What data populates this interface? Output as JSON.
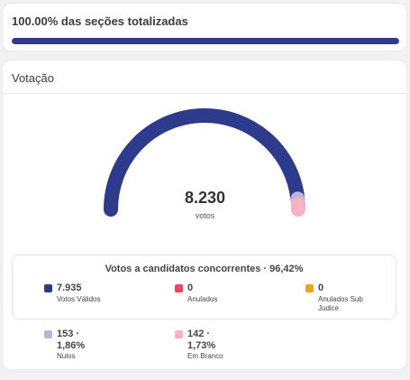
{
  "progress": {
    "title": "100.00% das seções totalizadas",
    "percent": 100,
    "color": "#2e3a8c"
  },
  "votacao": {
    "title": "Votação",
    "total_value": "8.230",
    "total_label": "votos",
    "summary_title": "Votos a candidatos concorrentes · 96,42%",
    "items": [
      {
        "value": "7.935",
        "label": "Votos Válidos",
        "color": "#2e3a8c",
        "count": 7935
      },
      {
        "value": "0",
        "label": "Anulados",
        "color": "#e8475e",
        "count": 0
      },
      {
        "value": "0",
        "label": "Anulados Sub Judice",
        "color": "#f0a11a",
        "count": 0
      },
      {
        "value": "153 · 1,86%",
        "label": "Nulos",
        "color": "#b9b5d9",
        "count": 153
      },
      {
        "value": "142 · 1,73%",
        "label": "Em Branco",
        "color": "#f7b3c2",
        "count": 142
      }
    ]
  }
}
